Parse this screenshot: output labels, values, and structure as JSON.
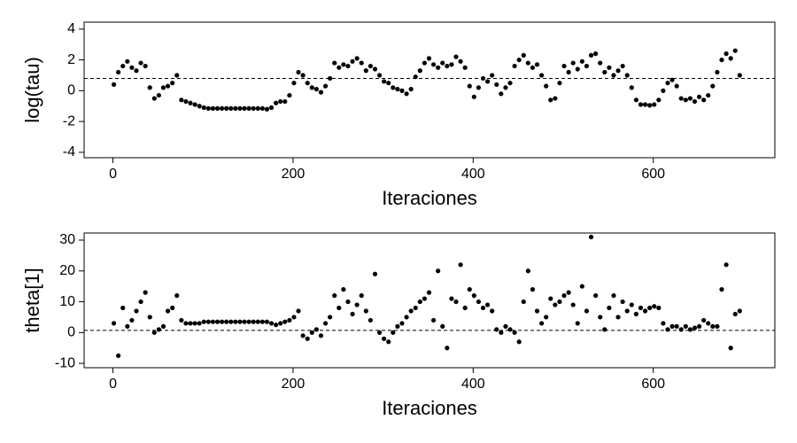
{
  "chart_data": [
    {
      "type": "scatter",
      "x_label": "Iteraciones",
      "y_label": "log(tau)",
      "color": "#000000",
      "xlim": [
        -32,
        735
      ],
      "ylim": [
        -4.35,
        4.45
      ],
      "xticks": [
        0,
        200,
        400,
        600
      ],
      "yticks": [
        -4,
        -2,
        0,
        2,
        4
      ],
      "hline": 0.8,
      "x": [
        1,
        6,
        11,
        16,
        21,
        26,
        31,
        36,
        41,
        46,
        51,
        56,
        61,
        66,
        71,
        76,
        81,
        86,
        91,
        96,
        101,
        106,
        111,
        116,
        121,
        126,
        131,
        136,
        141,
        146,
        151,
        156,
        161,
        166,
        171,
        176,
        181,
        186,
        191,
        196,
        201,
        206,
        211,
        216,
        221,
        226,
        231,
        236,
        241,
        246,
        251,
        256,
        261,
        266,
        271,
        276,
        281,
        286,
        291,
        296,
        301,
        306,
        311,
        316,
        321,
        326,
        331,
        336,
        341,
        346,
        351,
        356,
        361,
        366,
        371,
        376,
        381,
        386,
        391,
        396,
        401,
        406,
        411,
        416,
        421,
        426,
        431,
        436,
        441,
        446,
        451,
        456,
        461,
        466,
        471,
        476,
        481,
        486,
        491,
        496,
        501,
        506,
        511,
        516,
        521,
        526,
        531,
        536,
        541,
        546,
        551,
        556,
        561,
        566,
        571,
        576,
        581,
        586,
        591,
        596,
        601,
        606,
        611,
        616,
        621,
        626,
        631,
        636,
        641,
        646,
        651,
        656,
        661,
        666,
        671,
        676,
        681,
        686,
        691,
        696
      ],
      "values": [
        0.4,
        1.2,
        1.6,
        1.9,
        1.5,
        1.3,
        1.8,
        1.6,
        0.2,
        -0.5,
        -0.3,
        0.2,
        0.3,
        0.5,
        1.0,
        -0.6,
        -0.7,
        -0.8,
        -0.9,
        -1.0,
        -1.1,
        -1.15,
        -1.15,
        -1.15,
        -1.15,
        -1.15,
        -1.15,
        -1.15,
        -1.15,
        -1.15,
        -1.15,
        -1.15,
        -1.15,
        -1.15,
        -1.2,
        -1.1,
        -0.8,
        -0.7,
        -0.7,
        -0.3,
        0.5,
        1.2,
        1.0,
        0.5,
        0.2,
        0.1,
        -0.1,
        0.3,
        0.8,
        1.8,
        1.5,
        1.7,
        1.6,
        1.9,
        2.1,
        1.8,
        1.3,
        1.6,
        1.4,
        1.0,
        0.6,
        0.5,
        0.2,
        0.1,
        0.0,
        -0.2,
        0.1,
        0.9,
        1.3,
        1.8,
        2.1,
        1.7,
        1.5,
        1.8,
        1.6,
        1.7,
        2.2,
        1.9,
        1.5,
        0.3,
        -0.4,
        0.2,
        0.8,
        0.6,
        1.0,
        0.4,
        -0.2,
        0.2,
        0.5,
        1.6,
        2.0,
        2.3,
        1.8,
        1.5,
        1.7,
        1.0,
        0.3,
        -0.6,
        -0.5,
        0.5,
        1.6,
        1.2,
        1.8,
        1.4,
        1.9,
        1.6,
        2.3,
        2.4,
        1.8,
        1.2,
        1.5,
        1.0,
        1.3,
        1.6,
        1.0,
        0.2,
        -0.6,
        -0.9,
        -0.9,
        -0.95,
        -0.9,
        -0.6,
        0.0,
        0.5,
        0.7,
        0.3,
        -0.5,
        -0.6,
        -0.5,
        -0.7,
        -0.4,
        -0.6,
        -0.3,
        0.3,
        1.2,
        2.0,
        2.4,
        2.1,
        2.6,
        1.0
      ]
    },
    {
      "type": "scatter",
      "x_label": "Iteraciones",
      "y_label": "theta[1]",
      "color": "#000000",
      "xlim": [
        -32,
        735
      ],
      "ylim": [
        -11.4,
        32.3
      ],
      "xticks": [
        0,
        200,
        400,
        600
      ],
      "yticks": [
        -10,
        0,
        10,
        20,
        30
      ],
      "hline": 0.7,
      "x": [
        1,
        6,
        11,
        16,
        21,
        26,
        31,
        36,
        41,
        46,
        51,
        56,
        61,
        66,
        71,
        76,
        81,
        86,
        91,
        96,
        101,
        106,
        111,
        116,
        121,
        126,
        131,
        136,
        141,
        146,
        151,
        156,
        161,
        166,
        171,
        176,
        181,
        186,
        191,
        196,
        201,
        206,
        211,
        216,
        221,
        226,
        231,
        236,
        241,
        246,
        251,
        256,
        261,
        266,
        271,
        276,
        281,
        286,
        291,
        296,
        301,
        306,
        311,
        316,
        321,
        326,
        331,
        336,
        341,
        346,
        351,
        356,
        361,
        366,
        371,
        376,
        381,
        386,
        391,
        396,
        401,
        406,
        411,
        416,
        421,
        426,
        431,
        436,
        441,
        446,
        451,
        456,
        461,
        466,
        471,
        476,
        481,
        486,
        491,
        496,
        501,
        506,
        511,
        516,
        521,
        526,
        531,
        536,
        541,
        546,
        551,
        556,
        561,
        566,
        571,
        576,
        581,
        586,
        591,
        596,
        601,
        606,
        611,
        616,
        621,
        626,
        631,
        636,
        641,
        646,
        651,
        656,
        661,
        666,
        671,
        676,
        681,
        686,
        691,
        696
      ],
      "values": [
        3,
        -7.5,
        8,
        2,
        4,
        7,
        10,
        13,
        5,
        0,
        1,
        2,
        7,
        8,
        12,
        4,
        3,
        3,
        3,
        3,
        3.5,
        3.5,
        3.5,
        3.5,
        3.5,
        3.5,
        3.5,
        3.5,
        3.5,
        3.5,
        3.5,
        3.5,
        3.5,
        3.5,
        3.5,
        3,
        2.5,
        3,
        3.5,
        4,
        5,
        7,
        -1,
        -2,
        0,
        1,
        -1,
        3,
        5,
        12,
        8,
        14,
        10,
        6,
        9,
        12,
        7,
        4,
        19,
        0,
        -2,
        -3,
        0,
        2,
        3,
        5,
        7,
        8,
        10,
        11,
        13,
        4,
        20,
        2,
        -5,
        11,
        10,
        22,
        8,
        14,
        12,
        10,
        8,
        9,
        7,
        1,
        0,
        2,
        1,
        0,
        -3,
        10,
        20,
        14,
        7,
        3,
        5,
        11,
        9,
        10,
        12,
        13,
        9,
        3,
        15,
        7,
        31,
        12,
        5,
        1,
        8,
        12,
        5,
        10,
        7,
        9,
        6,
        8,
        7,
        8,
        8.5,
        8,
        3,
        1,
        2,
        2,
        1,
        2,
        1,
        1.5,
        2,
        4,
        3,
        2,
        2,
        14,
        22,
        -5,
        6,
        7
      ]
    }
  ]
}
